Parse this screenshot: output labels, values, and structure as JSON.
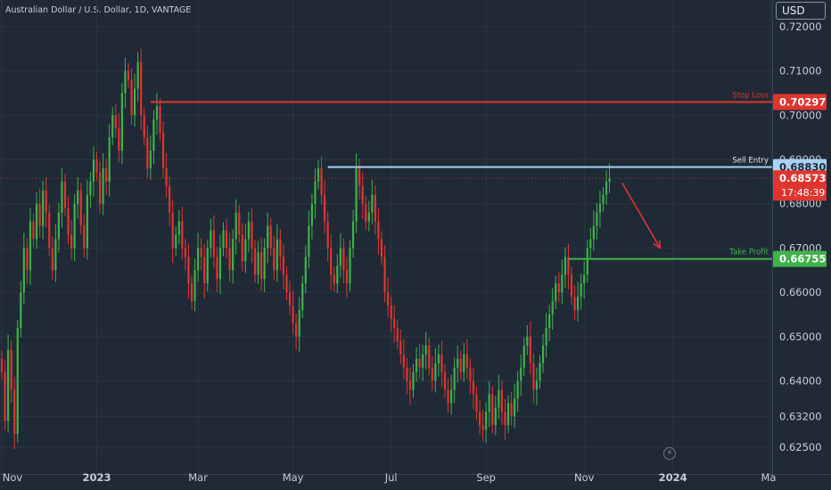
{
  "header": {
    "title": "Australian Dollar / U.S. Dollar, 1D, VANTAGE",
    "currency": "USD"
  },
  "colors": {
    "background": "#1f2a36",
    "grid": "#2a3542",
    "up": "#3fb24a",
    "down": "#e0342f",
    "stop_loss": "#e0342f",
    "sell_entry": "#a9d1f5",
    "take_profit": "#3fb24a",
    "current_price": "#e0342f"
  },
  "chart_data": {
    "type": "candlestick",
    "ylim": [
      0.619,
      0.726
    ],
    "y_ticks": [
      "0.72000",
      "0.71000",
      "0.70000",
      "0.69000",
      "0.68000",
      "0.67000",
      "0.66000",
      "0.65000",
      "0.64000",
      "0.63200",
      "0.62500"
    ],
    "y_tick_values": [
      0.72,
      0.71,
      0.7,
      0.69,
      0.68,
      0.67,
      0.66,
      0.65,
      0.64,
      0.632,
      0.625
    ],
    "x_ticks": [
      "Nov",
      "2023",
      "Mar",
      "May",
      "Jul",
      "Sep",
      "Nov",
      "2024",
      "Ma"
    ],
    "levels": [
      {
        "name": "Stop Loss",
        "value": "0.70297",
        "price": 0.70297,
        "color": "#e0342f",
        "start_index": 47
      },
      {
        "name": "Sell Entry",
        "value": "0.68830",
        "price": 0.6883,
        "color": "#a9d1f5",
        "start_index": 103
      },
      {
        "name": "Take Profit",
        "value": "0.66755",
        "price": 0.66755,
        "color": "#3fb24a",
        "start_index": 179
      }
    ],
    "current_price": {
      "value": "0.68573",
      "price": 0.68573,
      "countdown": "17:48:39"
    },
    "forecast_arrow": {
      "from": 0.6855,
      "to": 0.67
    },
    "x_range": [
      0,
      218
    ],
    "closes": [
      0.642,
      0.631,
      0.647,
      0.638,
      0.628,
      0.652,
      0.66,
      0.67,
      0.665,
      0.676,
      0.672,
      0.68,
      0.675,
      0.683,
      0.678,
      0.67,
      0.665,
      0.672,
      0.678,
      0.685,
      0.679,
      0.673,
      0.67,
      0.68,
      0.683,
      0.675,
      0.67,
      0.682,
      0.685,
      0.69,
      0.687,
      0.68,
      0.688,
      0.685,
      0.695,
      0.7,
      0.697,
      0.692,
      0.705,
      0.71,
      0.708,
      0.7,
      0.706,
      0.712,
      0.7,
      0.695,
      0.688,
      0.692,
      0.699,
      0.702,
      0.696,
      0.688,
      0.684,
      0.678,
      0.67,
      0.673,
      0.676,
      0.67,
      0.668,
      0.662,
      0.658,
      0.665,
      0.67,
      0.668,
      0.662,
      0.67,
      0.674,
      0.668,
      0.663,
      0.67,
      0.674,
      0.67,
      0.665,
      0.672,
      0.678,
      0.673,
      0.667,
      0.672,
      0.676,
      0.67,
      0.664,
      0.669,
      0.663,
      0.67,
      0.675,
      0.67,
      0.665,
      0.672,
      0.668,
      0.664,
      0.66,
      0.657,
      0.653,
      0.65,
      0.656,
      0.662,
      0.668,
      0.675,
      0.68,
      0.685,
      0.688,
      0.682,
      0.676,
      0.67,
      0.664,
      0.662,
      0.666,
      0.67,
      0.665,
      0.662,
      0.67,
      0.676,
      0.688,
      0.684,
      0.68,
      0.676,
      0.678,
      0.682,
      0.676,
      0.672,
      0.668,
      0.66,
      0.657,
      0.654,
      0.652,
      0.649,
      0.646,
      0.643,
      0.64,
      0.638,
      0.642,
      0.645,
      0.643,
      0.646,
      0.648,
      0.643,
      0.64,
      0.644,
      0.646,
      0.642,
      0.638,
      0.635,
      0.638,
      0.643,
      0.645,
      0.642,
      0.646,
      0.643,
      0.64,
      0.637,
      0.633,
      0.63,
      0.629,
      0.633,
      0.637,
      0.63,
      0.634,
      0.638,
      0.633,
      0.63,
      0.635,
      0.632,
      0.636,
      0.64,
      0.643,
      0.648,
      0.65,
      0.644,
      0.638,
      0.64,
      0.644,
      0.648,
      0.652,
      0.655,
      0.658,
      0.662,
      0.66,
      0.664,
      0.668,
      0.664,
      0.659,
      0.656,
      0.659,
      0.662,
      0.664,
      0.67,
      0.672,
      0.675,
      0.678,
      0.68,
      0.682,
      0.685,
      0.6857
    ]
  }
}
